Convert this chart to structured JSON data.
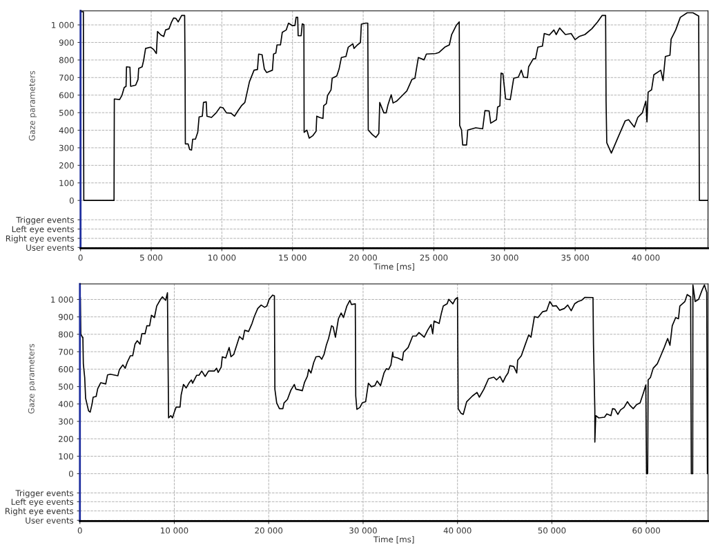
{
  "chart_data": [
    {
      "type": "line",
      "xlabel": "Time [ms]",
      "ylabel": "Gaze parameters",
      "grid": true,
      "legend": false,
      "marker": "none",
      "line_style": "solid",
      "xlim": [
        0,
        44400
      ],
      "ylim": [
        -272,
        1080
      ],
      "xticks": [
        0,
        {
          "value": 5000,
          "label": "5 000"
        },
        {
          "value": 10000,
          "label": "10 000"
        },
        {
          "value": 15000,
          "label": "15 000"
        },
        {
          "value": 20000,
          "label": "20 000"
        },
        {
          "value": 25000,
          "label": "25 000"
        },
        {
          "value": 30000,
          "label": "30 000"
        },
        {
          "value": 35000,
          "label": "35 000"
        },
        {
          "value": 40000,
          "label": "40 000"
        }
      ],
      "yticks": [
        {
          "value": -268,
          "label": "User events"
        },
        {
          "value": -216,
          "label": "Right eye events"
        },
        {
          "value": -163,
          "label": "Left eye events"
        },
        {
          "value": -110,
          "label": "Trigger events"
        },
        0,
        100,
        200,
        300,
        400,
        500,
        600,
        700,
        800,
        900,
        {
          "value": 1000,
          "label": "1 000"
        }
      ],
      "series": [
        {
          "color": "#000000",
          "x": [
            100,
            200,
            230,
            2370,
            2390,
            2764,
            2927,
            3089,
            3220,
            3252,
            3496,
            3545,
            3902,
            4065,
            4114,
            4358,
            4472,
            4602,
            4959,
            5171,
            5366,
            5447,
            5691,
            5886,
            6016,
            6260,
            6423,
            6585,
            6748,
            6911,
            7154,
            7366,
            7398,
            7415,
            7610,
            7724,
            7854,
            7935,
            8130,
            8293,
            8390,
            8618,
            8699,
            8894,
            8943,
            9268,
            9593,
            9886,
            10081,
            10325,
            10650,
            10894,
            11138,
            11382,
            11626,
            11789,
            11951,
            12276,
            12520,
            12602,
            12846,
            13008,
            13171,
            13577,
            13659,
            13821,
            13902,
            14146,
            14276,
            14553,
            14715,
            14959,
            15171,
            15252,
            15366,
            15398,
            15610,
            15691,
            15805,
            15821,
            16016,
            16179,
            16423,
            16667,
            16715,
            16911,
            17154,
            17203,
            17398,
            17480,
            17724,
            17805,
            18130,
            18293,
            18455,
            18780,
            18943,
            19268,
            19350,
            19593,
            19805,
            19870,
            20163,
            20325,
            20358,
            20650,
            20894,
            21106,
            21171,
            21463,
            21626,
            21756,
            21984,
            22114,
            22358,
            22683,
            23089,
            23447,
            23659,
            23902,
            24309,
            24472,
            25122,
            25366,
            25772,
            26098,
            26260,
            26585,
            26797,
            26829,
            26959,
            27041,
            27317,
            27398,
            27967,
            28455,
            28618,
            28911,
            29024,
            29431,
            29512,
            29675,
            29756,
            29886,
            30081,
            30407,
            30650,
            30976,
            31187,
            31350,
            31626,
            31707,
            32033,
            32195,
            32358,
            32683,
            32813,
            33171,
            33496,
            33659,
            33902,
            34309,
            34715,
            34992,
            35285,
            35691,
            36179,
            36585,
            36911,
            37154,
            37187,
            37236,
            37561,
            38049,
            38537,
            38780,
            39187,
            39431,
            39756,
            40000,
            40081,
            40163,
            40407,
            40569,
            41057,
            41220,
            41382,
            41707,
            41789,
            42114,
            42439,
            42927,
            43333,
            43740,
            43789,
            44400
          ],
          "values": [
            1075,
            1075,
            0,
            0,
            578,
            575,
            598,
            643,
            650,
            761,
            759,
            650,
            657,
            689,
            752,
            761,
            801,
            866,
            873,
            860,
            837,
            962,
            942,
            934,
            971,
            978,
            1013,
            1039,
            1037,
            1017,
            1054,
            1054,
            729,
            322,
            322,
            290,
            287,
            349,
            349,
            388,
            476,
            480,
            558,
            562,
            480,
            473,
            499,
            532,
            528,
            499,
            497,
            480,
            510,
            539,
            558,
            617,
            676,
            742,
            746,
            834,
            830,
            748,
            729,
            742,
            834,
            840,
            886,
            886,
            958,
            971,
            1010,
            997,
            997,
            1043,
            1043,
            938,
            938,
            1006,
            1001,
            388,
            401,
            355,
            368,
            394,
            480,
            473,
            467,
            539,
            552,
            598,
            630,
            696,
            709,
            748,
            814,
            820,
            873,
            892,
            866,
            886,
            899,
            1004,
            1010,
            1010,
            401,
            375,
            359,
            381,
            558,
            499,
            499,
            545,
            602,
            555,
            565,
            591,
            624,
            689,
            696,
            814,
            801,
            834,
            837,
            843,
            873,
            886,
            945,
            997,
            1017,
            427,
            401,
            316,
            316,
            401,
            414,
            408,
            512,
            510,
            440,
            460,
            532,
            539,
            725,
            722,
            578,
            574,
            696,
            702,
            742,
            702,
            699,
            761,
            807,
            807,
            873,
            879,
            951,
            942,
            971,
            945,
            982,
            945,
            951,
            916,
            934,
            945,
            978,
            1017,
            1054,
            1054,
            565,
            329,
            270,
            362,
            453,
            460,
            418,
            473,
            499,
            565,
            447,
            617,
            630,
            716,
            742,
            683,
            820,
            827,
            919,
            971,
            1043,
            1069,
            1069,
            1050,
            0,
            0
          ]
        }
      ]
    },
    {
      "type": "line",
      "xlabel": "Time [ms]",
      "ylabel": "Gaze parameters",
      "grid": true,
      "legend": false,
      "marker": "none",
      "line_style": "solid",
      "xlim": [
        0,
        66545
      ],
      "ylim": [
        -272,
        1089
      ],
      "xticks": [
        0,
        {
          "value": 10000,
          "label": "10 000"
        },
        {
          "value": 20000,
          "label": "20 000"
        },
        {
          "value": 30000,
          "label": "30 000"
        },
        {
          "value": 40000,
          "label": "40 000"
        },
        {
          "value": 50000,
          "label": "50 000"
        },
        {
          "value": 60000,
          "label": "60 000"
        }
      ],
      "yticks": [
        {
          "value": -268,
          "label": "User events"
        },
        {
          "value": -214,
          "label": "Right eye events"
        },
        {
          "value": -161,
          "label": "Left eye events"
        },
        {
          "value": -111,
          "label": "Trigger events"
        },
        0,
        100,
        200,
        300,
        400,
        500,
        600,
        700,
        800,
        900,
        {
          "value": 1000,
          "label": "1 000"
        }
      ],
      "series": [
        {
          "color": "#000000",
          "x": [
            50,
            100,
            300,
            315,
            363,
            508,
            605,
            751,
            920,
            1090,
            1283,
            1404,
            1719,
            1889,
            2203,
            2736,
            2930,
            3220,
            4019,
            4189,
            4552,
            4794,
            5036,
            5351,
            5593,
            5835,
            6077,
            6368,
            6562,
            6901,
            7094,
            7385,
            7579,
            7893,
            8136,
            8547,
            8741,
            9080,
            9274,
            9322,
            9395,
            9637,
            9806,
            10000,
            10194,
            10605,
            10726,
            10969,
            11259,
            11574,
            11816,
            11937,
            12373,
            12615,
            12906,
            13269,
            13632,
            14237,
            14479,
            14649,
            14964,
            15085,
            15448,
            15811,
            16005,
            16295,
            16901,
            17264,
            17458,
            17869,
            18232,
            18475,
            18838,
            19201,
            19564,
            19806,
            20048,
            20412,
            20605,
            20654,
            20847,
            21138,
            21501,
            21622,
            21985,
            22349,
            22712,
            22881,
            23366,
            23559,
            23801,
            24092,
            24237,
            24479,
            24770,
            25012,
            25375,
            25617,
            25860,
            26102,
            26344,
            26659,
            26828,
            27070,
            27385,
            27676,
            27918,
            28281,
            28596,
            28765,
            29173,
            29221,
            29343,
            29659,
            29903,
            30268,
            30560,
            30876,
            31241,
            31484,
            31849,
            32214,
            32457,
            32701,
            32944,
            33139,
            33187,
            33674,
            34161,
            34282,
            34769,
            35255,
            35620,
            35912,
            36472,
            36837,
            37202,
            37372,
            37518,
            38054,
            38297,
            38491,
            38905,
            39075,
            39513,
            39757,
            40000,
            40073,
            40365,
            40608,
            40973,
            41582,
            42068,
            42311,
            42798,
            43285,
            43844,
            44136,
            44501,
            44818,
            45109,
            45353,
            45547,
            45961,
            46277,
            46375,
            46764,
            47105,
            47543,
            47786,
            48151,
            48516,
            49002,
            49440,
            49781,
            50097,
            50462,
            50827,
            51314,
            51679,
            52044,
            52409,
            52774,
            53139,
            53504,
            54355,
            54404,
            54550,
            54550,
            54647,
            54964,
            55572,
            55815,
            56253,
            56423,
            56667,
            56983,
            57275,
            57640,
            58005,
            58248,
            58613,
            58978,
            59343,
            59708,
            59951,
            60024,
            60146,
            60195,
            60438,
            60730,
            61168,
            61533,
            61898,
            62263,
            62506,
            62749,
            63114,
            63406,
            63552,
            64087,
            64331,
            64696,
            64769,
            64915,
            64939,
            65182,
            65547,
            65912,
            66156,
            66399,
            66472,
            66545
          ],
          "values": [
            1010,
            800,
            780,
            783,
            631,
            552,
            433,
            399,
            360,
            353,
            399,
            439,
            443,
            488,
            522,
            515,
            567,
            571,
            562,
            598,
            624,
            605,
            642,
            677,
            677,
            743,
            763,
            743,
            803,
            803,
            849,
            849,
            909,
            896,
            962,
            1001,
            1015,
            995,
            1038,
            737,
            320,
            333,
            320,
            353,
            382,
            382,
            452,
            512,
            492,
            522,
            538,
            519,
            565,
            565,
            589,
            558,
            589,
            589,
            605,
            581,
            611,
            671,
            664,
            724,
            671,
            684,
            787,
            770,
            823,
            816,
            862,
            902,
            948,
            968,
            955,
            962,
            1001,
            1025,
            1021,
            485,
            406,
            373,
            373,
            406,
            426,
            479,
            512,
            485,
            479,
            476,
            525,
            558,
            598,
            578,
            638,
            671,
            673,
            657,
            684,
            737,
            776,
            849,
            843,
            783,
            889,
            922,
            896,
            962,
            995,
            971,
            975,
            446,
            369,
            380,
            406,
            413,
            519,
            499,
            505,
            532,
            505,
            578,
            602,
            598,
            624,
            697,
            671,
            664,
            651,
            697,
            724,
            790,
            790,
            810,
            783,
            823,
            856,
            803,
            876,
            862,
            922,
            962,
            975,
            1001,
            975,
            1001,
            1011,
            373,
            347,
            340,
            413,
            446,
            466,
            439,
            485,
            545,
            554,
            538,
            558,
            525,
            558,
            578,
            620,
            615,
            578,
            651,
            677,
            730,
            796,
            783,
            902,
            896,
            929,
            935,
            988,
            962,
            964,
            938,
            948,
            968,
            935,
            975,
            988,
            995,
            1012,
            1011,
            743,
            366,
            181,
            333,
            320,
            324,
            343,
            333,
            373,
            370,
            340,
            366,
            380,
            413,
            393,
            373,
            396,
            406,
            466,
            509,
            0,
            0,
            538,
            552,
            605,
            631,
            677,
            724,
            776,
            737,
            849,
            896,
            889,
            962,
            988,
            1028,
            1015,
            0,
            0,
            1083,
            988,
            1001,
            1054,
            1083,
            1041,
            0,
            0
          ]
        }
      ]
    }
  ]
}
